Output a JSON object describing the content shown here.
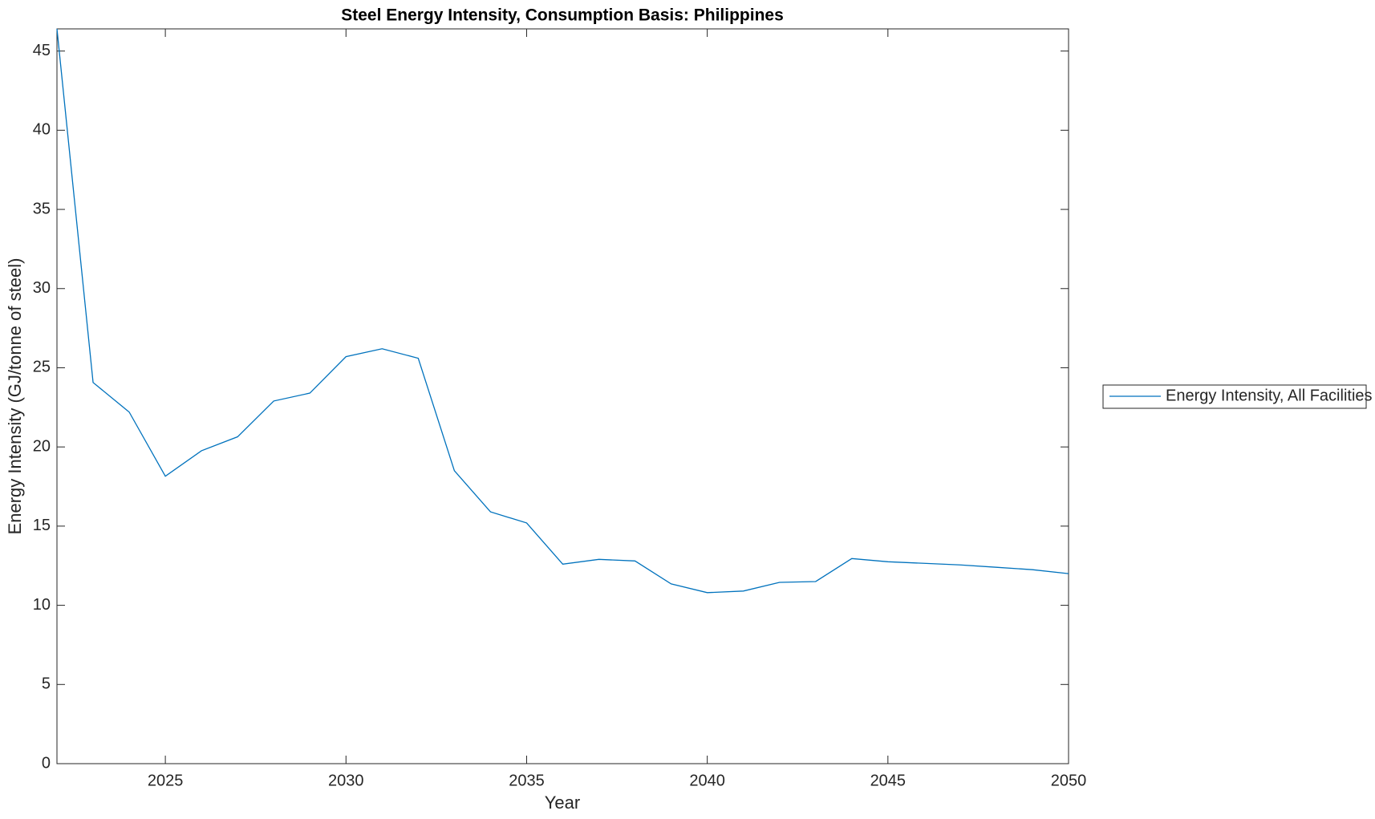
{
  "chart_data": {
    "type": "line",
    "title": "Steel Energy Intensity, Consumption Basis: Philippines",
    "x_label": "Year",
    "y_label": "Energy Intensity (GJ/tonne of steel)",
    "x": [
      2022,
      2023,
      2024,
      2025,
      2026,
      2027,
      2028,
      2029,
      2030,
      2031,
      2032,
      2033,
      2034,
      2035,
      2036,
      2037,
      2038,
      2039,
      2040,
      2041,
      2042,
      2043,
      2044,
      2045,
      2046,
      2047,
      2048,
      2049,
      2050
    ],
    "series": [
      {
        "name": "Energy Intensity, All Facilities",
        "color": "#0072bd",
        "values": [
          46.4,
          24.07,
          22.2,
          18.15,
          19.76,
          20.64,
          22.9,
          23.4,
          25.7,
          26.2,
          25.6,
          18.5,
          15.9,
          15.2,
          12.6,
          12.9,
          12.8,
          11.35,
          10.8,
          10.9,
          11.45,
          11.5,
          12.95,
          12.75,
          12.65,
          12.55,
          12.4,
          12.25,
          12.0
        ]
      }
    ],
    "xlim": [
      2022,
      2050
    ],
    "xticks": [
      2025,
      2030,
      2035,
      2040,
      2045,
      2050
    ],
    "ylim": [
      0,
      46.4
    ],
    "yticks": [
      0,
      5,
      10,
      15,
      20,
      25,
      30,
      35,
      40,
      45
    ],
    "grid": false,
    "legend": "east outside"
  }
}
